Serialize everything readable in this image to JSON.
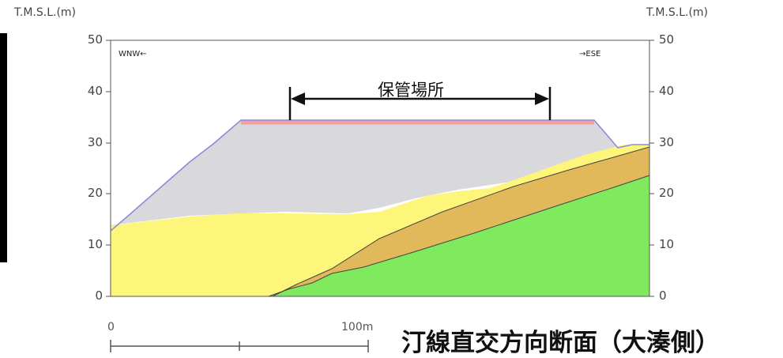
{
  "left_unit": "T.M.S.L.(m)",
  "right_unit": "T.M.S.L.(m)",
  "y_ticks": [
    "50",
    "40",
    "30",
    "20",
    "10",
    "0"
  ],
  "dir_left": "WNW←",
  "dir_right": "→ESE",
  "storage_label": "保管場所",
  "scale": {
    "start": "0",
    "end": "100m"
  },
  "title": "汀線直交方向断面（大湊側）",
  "colors": {
    "fill_gray": "#d9d9dd",
    "fill_yellow": "#fdf67a",
    "fill_orange": "#e2b95a",
    "fill_green": "#7fea5e",
    "pavement": "#f2a0a6",
    "surface_line": "#8c8ad9"
  }
}
